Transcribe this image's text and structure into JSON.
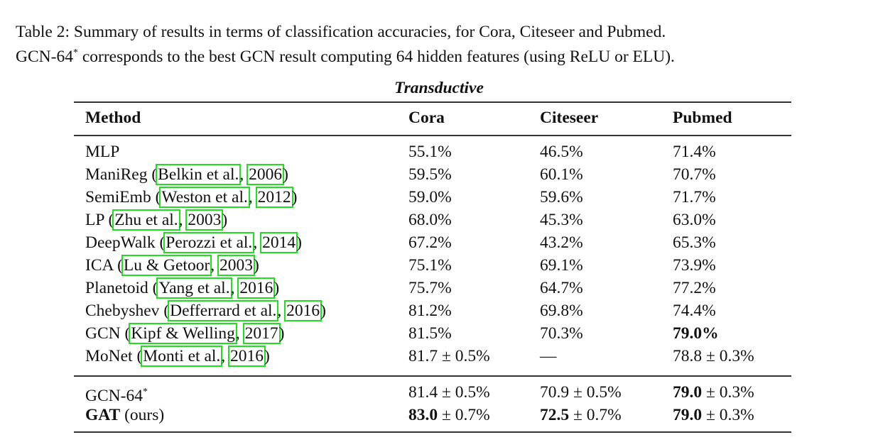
{
  "caption": {
    "line1": "Table 2: Summary of results in terms of classification accuracies, for Cora, Citeseer and Pubmed.",
    "line2_prefix": "GCN-64",
    "line2_sup": "*",
    "line2_rest": " corresponds to the best GCN result computing 64 hidden features (using ReLU or ELU)."
  },
  "group_title": "Transductive",
  "headers": [
    "Method",
    "Cora",
    "Citeseer",
    "Pubmed"
  ],
  "rows": [
    {
      "method": "MLP",
      "cora": "55.1%",
      "citeseer": "46.5%",
      "pubmed": "71.4%"
    },
    {
      "method": "ManiReg",
      "ref_author": "Belkin et al.",
      "ref_year": "2006",
      "cora": "59.5%",
      "citeseer": "60.1%",
      "pubmed": "70.7%"
    },
    {
      "method": "SemiEmb",
      "ref_author": "Weston et al.",
      "ref_year": "2012",
      "cora": "59.0%",
      "citeseer": "59.6%",
      "pubmed": "71.7%"
    },
    {
      "method": "LP",
      "ref_author": "Zhu et al.",
      "ref_year": "2003",
      "cora": "68.0%",
      "citeseer": "45.3%",
      "pubmed": "63.0%"
    },
    {
      "method": "DeepWalk",
      "ref_author": "Perozzi et al.",
      "ref_year": "2014",
      "cora": "67.2%",
      "citeseer": "43.2%",
      "pubmed": "65.3%"
    },
    {
      "method": "ICA",
      "ref_author": "Lu & Getoor",
      "ref_year": "2003",
      "cora": "75.1%",
      "citeseer": "69.1%",
      "pubmed": "73.9%"
    },
    {
      "method": "Planetoid",
      "ref_author": "Yang et al.",
      "ref_year": "2016",
      "cora": "75.7%",
      "citeseer": "64.7%",
      "pubmed": "77.2%"
    },
    {
      "method": "Chebyshev",
      "ref_author": "Defferrard et al.",
      "ref_year": "2016",
      "cora": "81.2%",
      "citeseer": "69.8%",
      "pubmed": "74.4%"
    },
    {
      "method": "GCN",
      "ref_author": "Kipf & Welling",
      "ref_year": "2017",
      "cora": "81.5%",
      "citeseer": "70.3%",
      "pubmed": "79.0%"
    },
    {
      "method": "MoNet",
      "ref_author": "Monti et al.",
      "ref_year": "2016",
      "cora": "81.7 ± 0.5%",
      "citeseer": "—",
      "pubmed": "78.8 ± 0.3%"
    }
  ],
  "bottom_rows": [
    {
      "method": "GCN-64",
      "method_sup": "*",
      "cora": "81.4 ± 0.5%",
      "citeseer": "70.9 ± 0.5%",
      "pubmed_bold": "79.0",
      "pubmed_rest": " ± 0.3%"
    },
    {
      "method_bold": "GAT",
      "method_rest": " (ours)",
      "cora_bold": "83.0",
      "cora_rest": " ± 0.7%",
      "citeseer_bold": "72.5",
      "citeseer_rest": " ± 0.7%",
      "pubmed_bold": "79.0",
      "pubmed_rest": " ± 0.3%"
    }
  ]
}
